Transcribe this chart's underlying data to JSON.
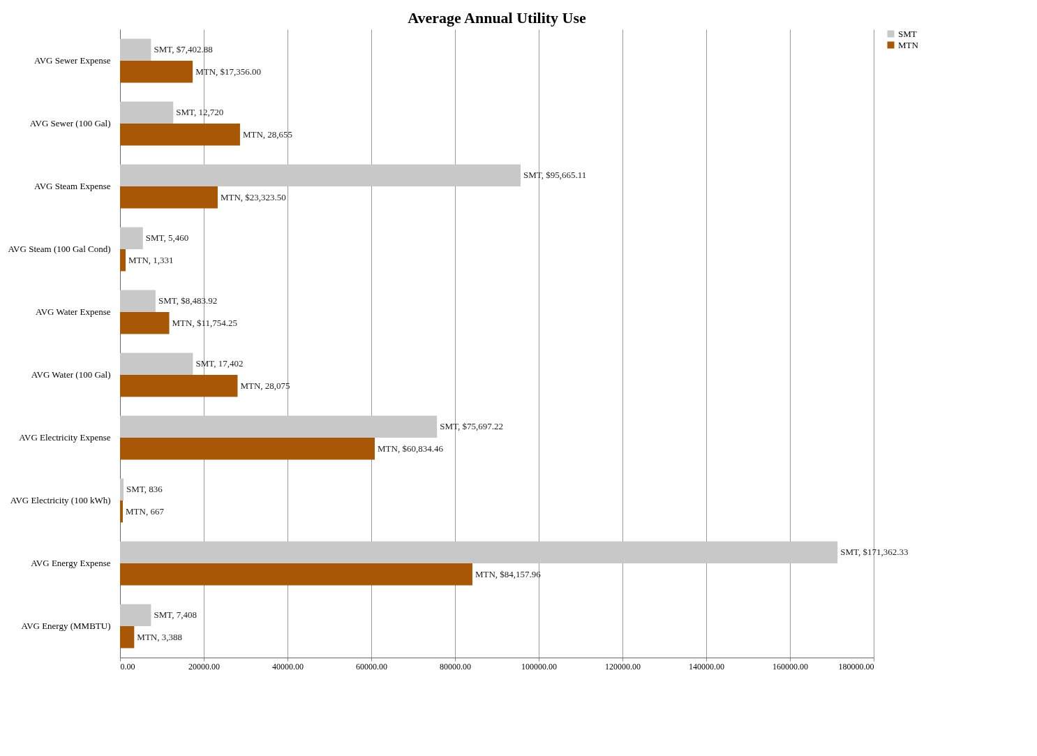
{
  "chart_data": {
    "type": "bar",
    "orientation": "horizontal",
    "title": "Average Annual Utility Use",
    "categories": [
      "AVG Sewer Expense",
      "AVG Sewer (100 Gal)",
      "AVG Steam Expense",
      "AVG Steam (100 Gal Cond)",
      "AVG Water Expense",
      "AVG Water (100 Gal)",
      "AVG Electricity Expense",
      "AVG Electricity (100 kWh)",
      "AVG Energy Expense",
      "AVG Energy (MMBTU)"
    ],
    "series": [
      {
        "name": "SMT",
        "color": "#c8c8c8",
        "values": [
          7402.88,
          12720,
          95665.11,
          5460,
          8483.92,
          17402,
          75697.22,
          836,
          171362.33,
          7408
        ],
        "value_labels": [
          "SMT, $7,402.88",
          "SMT, 12,720",
          "SMT, $95,665.11",
          "SMT, 5,460",
          "SMT, $8,483.92",
          "SMT, 17,402",
          "SMT, $75,697.22",
          "SMT, 836",
          "SMT, $171,362.33",
          "SMT, 7,408"
        ]
      },
      {
        "name": "MTN",
        "color": "#a85706",
        "values": [
          17356,
          28655,
          23323.5,
          1331,
          11754.25,
          28075,
          60834.46,
          667,
          84157.96,
          3388
        ],
        "value_labels": [
          "MTN, $17,356.00",
          "MTN, 28,655",
          "MTN, $23,323.50",
          "MTN, 1,331",
          "MTN, $11,754.25",
          "MTN, 28,075",
          "MTN, $60,834.46",
          "MTN, 667",
          "MTN, $84,157.96",
          "MTN, 3,388"
        ]
      }
    ],
    "xlim": [
      0,
      180000
    ],
    "xticks": [
      {
        "value": 0,
        "label": "0.00"
      },
      {
        "value": 20000,
        "label": "20000.00"
      },
      {
        "value": 40000,
        "label": "40000.00"
      },
      {
        "value": 60000,
        "label": "60000.00"
      },
      {
        "value": 80000,
        "label": "80000.00"
      },
      {
        "value": 100000,
        "label": "100000.00"
      },
      {
        "value": 120000,
        "label": "120000.00"
      },
      {
        "value": 140000,
        "label": "140000.00"
      },
      {
        "value": 160000,
        "label": "160000.00"
      },
      {
        "value": 180000,
        "label": "180000.00"
      }
    ],
    "grid": "x",
    "legend": "right"
  }
}
